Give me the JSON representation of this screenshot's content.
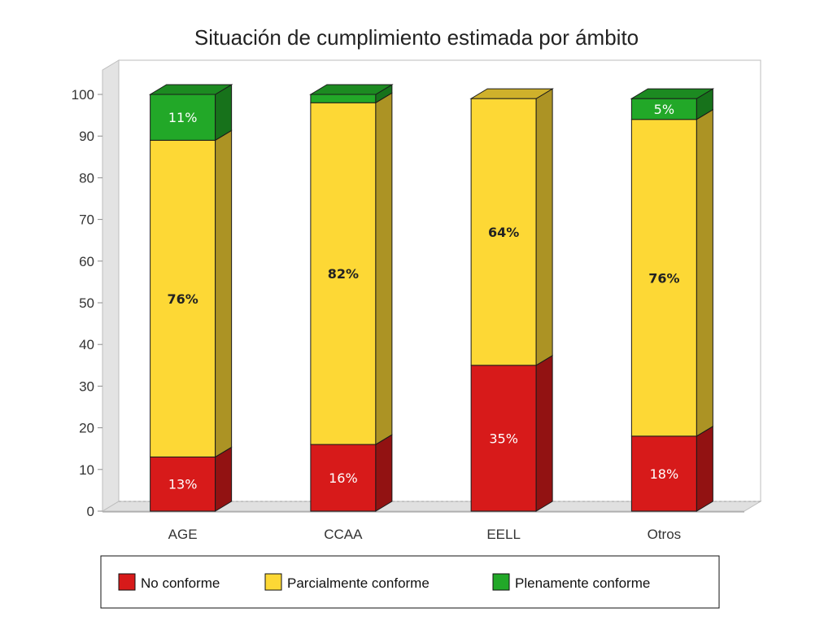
{
  "chart_data": {
    "type": "bar",
    "stacked": true,
    "three_d": true,
    "title": "Situación de cumplimiento estimada por ámbito",
    "xlabel": "",
    "ylabel": "",
    "ylim": [
      0,
      100
    ],
    "yticks": [
      "0",
      "10",
      "20",
      "30",
      "40",
      "50",
      "60",
      "70",
      "80",
      "90",
      "100"
    ],
    "categories": [
      "AGE",
      "CCAA",
      "EELL",
      "Otros"
    ],
    "series": [
      {
        "name": "No conforme",
        "color": "#d71a1a",
        "values": [
          13,
          16,
          35,
          18
        ],
        "labels": [
          "13%",
          "16%",
          "35%",
          "18%"
        ]
      },
      {
        "name": "Parcialmente conforme",
        "color": "#fdd835",
        "values": [
          76,
          82,
          64,
          76
        ],
        "labels": [
          "76%",
          "82%",
          "64%",
          "76%"
        ]
      },
      {
        "name": "Plenamente conforme",
        "color": "#22a828",
        "values": [
          11,
          2,
          0,
          5
        ],
        "labels": [
          "11%",
          "",
          "",
          "5%"
        ]
      }
    ],
    "legend_position": "bottom",
    "grid": false
  }
}
